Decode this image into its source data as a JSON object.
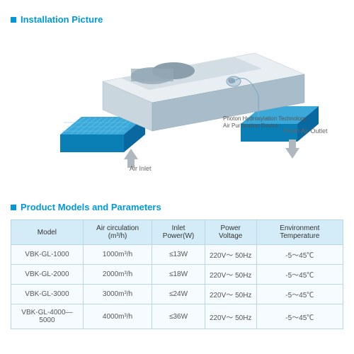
{
  "sections": {
    "installation": {
      "title": "Installation Picture"
    },
    "parameters": {
      "title": "Product Models and Parameters"
    }
  },
  "diagram": {
    "air_inlet_label": "Air Inlet",
    "fresh_air_outlet_label": "Fresh Air Outlet",
    "callout_line1": "Photon Hydroxylation Technology",
    "callout_line2": "Air Purification Device",
    "colors": {
      "box_top": "#e8eef2",
      "box_front": "#c9d6de",
      "box_side": "#a8bcc9",
      "support_top": "#3aa8d8",
      "support_front": "#0a7fb5",
      "support_side": "#0968a0",
      "arrow": "#b0b8bf",
      "line": "#7aa8c4"
    }
  },
  "table": {
    "columns": [
      "Model",
      "Air circulation (m³/h)",
      "Inlet Power(W)",
      "Power Voltage",
      "Environment Temperature"
    ],
    "rows": [
      [
        "VBK-GL-1000",
        "1000m³/h",
        "≤13W",
        "220V～ 50Hz",
        "-5～45℃"
      ],
      [
        "VBK-GL-2000",
        "2000m³/h",
        "≤18W",
        "220V～ 50Hz",
        "-5～45℃"
      ],
      [
        "VBK-GL-3000",
        "3000m³/h",
        "≤24W",
        "220V～ 50Hz",
        "-5～45℃"
      ],
      [
        "VBK-GL-4000—5000",
        "4000m³/h",
        "≤36W",
        "220V～ 50Hz",
        "-5～45℃"
      ]
    ],
    "header_bg": "#d4ecf7",
    "cell_bg": "#f5fbfe",
    "border_color": "#b8d8e8"
  }
}
